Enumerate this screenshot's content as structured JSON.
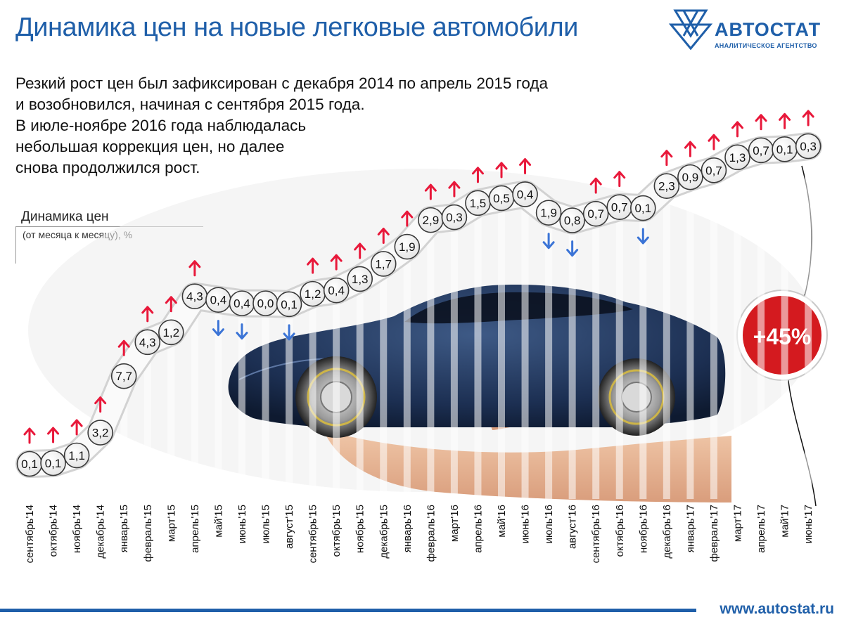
{
  "title": "Динамика цен на новые легковые автомобили",
  "logo": {
    "name": "АВТОСТАТ",
    "subtitle": "АНАЛИТИЧЕСКОЕ АГЕНТСТВО"
  },
  "description": [
    "Резкий рост цен был зафиксирован с декабря 2014 по апрель 2015 года",
    "и возобновился, начиная с сентября 2015 года.",
    "В июле-ноябре 2016 года наблюдалась",
    "небольшая коррекция цен, но далее",
    "снова продолжился рост."
  ],
  "legend": {
    "title": "Динамика цен",
    "subtitle": "(от месяца к месяцу), %"
  },
  "badge": "+45%",
  "footer": {
    "site": "www.autostat.ru"
  },
  "colors": {
    "brand": "#1f5fa9",
    "up": "#e8183a",
    "down": "#3b74d6",
    "badge": "#d41a1f"
  },
  "chart_data": {
    "type": "line",
    "x": [
      "сентябрь'14",
      "октябрь'14",
      "ноябрь'14",
      "декабрь'14",
      "январь'15",
      "февраль'15",
      "март'15",
      "апрель'15",
      "май'15",
      "июнь'15",
      "июль'15",
      "август'15",
      "сентябрь'15",
      "октябрь'15",
      "ноябрь'15",
      "декабрь'15",
      "январь'16",
      "февраль'16",
      "март'16",
      "апрель'16",
      "май'16",
      "июнь'16",
      "июль'16",
      "август'16",
      "сентябрь'16",
      "октябрь'16",
      "ноябрь'16",
      "декабрь'16",
      "январь'17",
      "февраль'17",
      "март'17",
      "апрель'17",
      "май'17",
      "июнь'17"
    ],
    "labels": [
      "0,1",
      "0,1",
      "1,1",
      "3,2",
      "7,7",
      "4,3",
      "1,2",
      "4,3",
      "0,4",
      "0,4",
      "0,0",
      "0,1",
      "1,2",
      "0,4",
      "1,3",
      "1,7",
      "1,9",
      "2,9",
      "0,3",
      "1,5",
      "0,5",
      "0,4",
      "1,9",
      "0,8",
      "0,7",
      "0,7",
      "0,1",
      "2,3",
      "0,9",
      "0,7",
      "1,3",
      "0,7",
      "0,1",
      "0,3"
    ],
    "values": [
      0.1,
      0.1,
      1.1,
      3.2,
      7.7,
      4.3,
      1.2,
      4.3,
      0.4,
      0.4,
      0.0,
      0.1,
      1.2,
      0.4,
      1.3,
      1.7,
      1.9,
      2.9,
      0.3,
      1.5,
      0.5,
      0.4,
      1.9,
      0.8,
      0.7,
      0.7,
      0.1,
      2.3,
      0.9,
      0.7,
      1.3,
      0.7,
      0.1,
      0.3
    ],
    "direction": [
      "up",
      "up",
      "up",
      "up",
      "up",
      "up",
      "up",
      "up",
      "down",
      "down",
      "none",
      "down",
      "up",
      "up",
      "up",
      "up",
      "up",
      "up",
      "up",
      "up",
      "up",
      "up",
      "down",
      "down",
      "up",
      "up",
      "down",
      "up",
      "up",
      "up",
      "up",
      "up",
      "up",
      "up"
    ],
    "cumulative_change": "+45%"
  }
}
